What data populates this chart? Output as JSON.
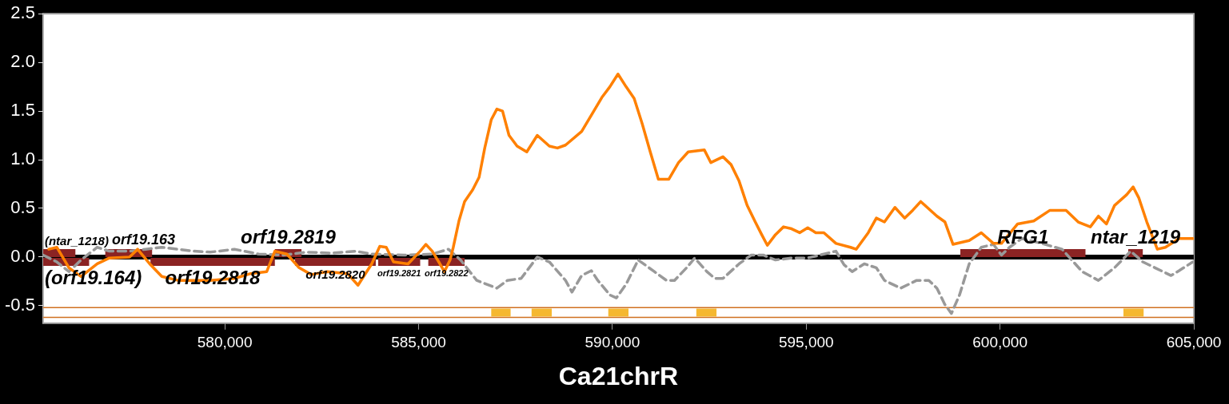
{
  "chart_data": {
    "type": "line",
    "xlabel": "Ca21chrR",
    "xlim": [
      575313,
      605000
    ],
    "ylim": [
      -0.68,
      2.5
    ],
    "xticks": [
      {
        "value": 580000,
        "label": "580,000"
      },
      {
        "value": 585000,
        "label": "585,000"
      },
      {
        "value": 590000,
        "label": "590,000"
      },
      {
        "value": 595000,
        "label": "595,000"
      },
      {
        "value": 600000,
        "label": "600,000"
      },
      {
        "value": 605000,
        "label": "605,000"
      }
    ],
    "yticks": [
      {
        "value": -0.5,
        "label": "-0.5"
      },
      {
        "value": 0,
        "label": "0.0"
      },
      {
        "value": 0.5,
        "label": "0.5"
      },
      {
        "value": 1,
        "label": "1.0"
      },
      {
        "value": 1.5,
        "label": "1.5"
      },
      {
        "value": 2,
        "label": "2.0"
      },
      {
        "value": 2.5,
        "label": "2.5"
      }
    ],
    "grid": false,
    "legend": false,
    "marker": "none",
    "series": [
      {
        "type": "line",
        "color": "#ff8000",
        "line_style": "solid",
        "x": [
          575459,
          575667,
          575980,
          576292,
          576709,
          577021,
          577542,
          577750,
          578063,
          578375,
          578792,
          579625,
          580250,
          580667,
          581083,
          581292,
          581604,
          581917,
          582229,
          582646,
          583167,
          583437,
          583791,
          583999,
          584166,
          584353,
          584728,
          585041,
          585187,
          585353,
          585520,
          585666,
          585812,
          585895,
          586041,
          586187,
          586395,
          586561,
          586707,
          586874,
          587020,
          587166,
          587333,
          587541,
          587791,
          588062,
          588374,
          588582,
          588790,
          589207,
          589520,
          589728,
          589936,
          590144,
          590353,
          590561,
          590769,
          590977,
          591186,
          591457,
          591706,
          591956,
          592373,
          592540,
          592852,
          593061,
          593269,
          593477,
          593686,
          593852,
          593998,
          594207,
          594415,
          594623,
          594831,
          595039,
          595248,
          595456,
          595768,
          596143,
          596289,
          596601,
          596810,
          597018,
          597289,
          597539,
          597747,
          597955,
          598372,
          598580,
          598788,
          599205,
          599517,
          599830,
          600038,
          600455,
          600871,
          601288,
          601705,
          602017,
          602330,
          602538,
          602746,
          602955,
          603267,
          603434,
          603579,
          603788,
          604059,
          604267,
          604621,
          604975
        ],
        "values": [
          0.08,
          0.1,
          -0.11,
          -0.2,
          -0.07,
          -0.01,
          0.0,
          0.08,
          -0.07,
          -0.2,
          -0.24,
          -0.24,
          -0.22,
          -0.17,
          -0.15,
          0.06,
          0.03,
          -0.11,
          -0.18,
          -0.15,
          -0.17,
          -0.29,
          -0.07,
          0.11,
          0.1,
          -0.05,
          -0.07,
          0.06,
          0.13,
          0.06,
          -0.05,
          -0.15,
          -0.03,
          0.1,
          0.37,
          0.57,
          0.69,
          0.82,
          1.12,
          1.41,
          1.52,
          1.5,
          1.25,
          1.14,
          1.08,
          1.25,
          1.14,
          1.12,
          1.15,
          1.29,
          1.5,
          1.64,
          1.75,
          1.88,
          1.75,
          1.63,
          1.37,
          1.08,
          0.8,
          0.8,
          0.97,
          1.08,
          1.1,
          0.97,
          1.03,
          0.95,
          0.78,
          0.53,
          0.36,
          0.23,
          0.12,
          0.23,
          0.31,
          0.29,
          0.25,
          0.3,
          0.25,
          0.25,
          0.14,
          0.1,
          0.08,
          0.25,
          0.4,
          0.36,
          0.51,
          0.4,
          0.48,
          0.57,
          0.42,
          0.36,
          0.13,
          0.17,
          0.25,
          0.14,
          0.14,
          0.34,
          0.37,
          0.48,
          0.48,
          0.36,
          0.31,
          0.42,
          0.34,
          0.53,
          0.64,
          0.72,
          0.61,
          0.36,
          0.08,
          0.1,
          0.19,
          0.19
        ]
      },
      {
        "type": "line",
        "color": "#999999",
        "line_style": "dashed",
        "x": [
          575313,
          575667,
          575980,
          576292,
          576709,
          577021,
          577542,
          577959,
          578375,
          579208,
          579625,
          580250,
          580875,
          581500,
          582125,
          582750,
          583375,
          583791,
          584624,
          585353,
          585770,
          586083,
          586499,
          587020,
          587291,
          587645,
          588062,
          588374,
          588790,
          588957,
          589207,
          589457,
          589623,
          589936,
          590103,
          590353,
          590665,
          591082,
          591394,
          591602,
          591915,
          592123,
          592436,
          592644,
          592852,
          593269,
          593581,
          593894,
          594207,
          594623,
          595039,
          595456,
          595768,
          595977,
          596185,
          596497,
          596810,
          597018,
          597435,
          597851,
          598164,
          598372,
          598580,
          598747,
          598955,
          599205,
          599517,
          599830,
          600038,
          600246,
          600559,
          601080,
          601601,
          602121,
          602538,
          602955,
          603371,
          603684,
          603996,
          604413,
          604621,
          604975
        ],
        "values": [
          0.02,
          -0.05,
          -0.15,
          -0.03,
          0.1,
          0.06,
          0.06,
          0.08,
          0.1,
          0.06,
          0.05,
          0.08,
          0.03,
          0.02,
          0.05,
          0.04,
          0.06,
          0.03,
          0.02,
          0.03,
          0.08,
          -0.03,
          -0.24,
          -0.32,
          -0.24,
          -0.22,
          0.0,
          -0.05,
          -0.24,
          -0.36,
          -0.19,
          -0.14,
          -0.24,
          -0.39,
          -0.42,
          -0.28,
          -0.03,
          -0.15,
          -0.24,
          -0.24,
          -0.11,
          -0.01,
          -0.15,
          -0.22,
          -0.22,
          -0.07,
          0.02,
          0.02,
          -0.03,
          -0.01,
          -0.01,
          0.03,
          0.06,
          -0.08,
          -0.15,
          -0.07,
          -0.11,
          -0.24,
          -0.32,
          -0.24,
          -0.24,
          -0.32,
          -0.49,
          -0.58,
          -0.39,
          -0.07,
          0.1,
          0.13,
          0.02,
          0.1,
          0.19,
          0.14,
          0.08,
          -0.15,
          -0.24,
          -0.11,
          0.06,
          -0.05,
          -0.11,
          -0.19,
          -0.14,
          -0.05
        ]
      },
      {
        "type": "line",
        "color": "#8b2323",
        "line_style": "solid",
        "x": [
          575313,
          576146,
          null,
          576917,
          578125,
          null,
          581292,
          581979,
          null,
          598976,
          602205,
          null,
          603309,
          603684
        ],
        "values": [
          0.04,
          0.04,
          null,
          0.04,
          0.04,
          null,
          0.04,
          0.04,
          null,
          0.04,
          0.04,
          null,
          0.04,
          0.04
        ]
      },
      {
        "type": "line",
        "color": "#8b2323",
        "line_style": "solid",
        "x": [
          575313,
          576500,
          null,
          578083,
          581292,
          null,
          581812,
          583895,
          null,
          583958,
          585041,
          null,
          585250,
          586187
        ],
        "values": [
          -0.05,
          -0.05,
          null,
          -0.05,
          -0.05,
          null,
          -0.05,
          -0.05,
          null,
          -0.05,
          -0.05,
          null,
          -0.05,
          -0.05
        ]
      },
      {
        "type": "line",
        "color": "#f5b830",
        "line_style": "solid",
        "x": [
          586874,
          587374,
          null,
          587915,
          588436,
          null,
          589894,
          590415,
          null,
          592165,
          592686,
          null,
          603184,
          603705
        ],
        "values": [
          -0.57,
          -0.57,
          null,
          -0.57,
          -0.57,
          null,
          -0.57,
          -0.57,
          null,
          -0.57,
          -0.57,
          null,
          -0.57,
          -0.57
        ]
      }
    ],
    "ref_lines": [
      {
        "axis": "y",
        "value": 0,
        "color": "#000000"
      },
      {
        "axis": "y",
        "value": -0.52,
        "color": "#d07020"
      },
      {
        "axis": "y",
        "value": -0.62,
        "color": "#d07020"
      }
    ],
    "annotations": [
      {
        "text": "(ntar_1218)",
        "x": 575313,
        "y": 0.04
      },
      {
        "text": "(orf19.164)",
        "x": 575313,
        "y": -0.05
      },
      {
        "text": "orf19.163",
        "x": 576917,
        "y": 0.04
      },
      {
        "text": "orf19.2818",
        "x": 578083,
        "y": -0.05
      },
      {
        "text": "orf19.2819",
        "x": 581292,
        "y": 0.04
      },
      {
        "text": "orf19.2820",
        "x": 581812,
        "y": -0.05
      },
      {
        "text": "orf19.2821",
        "x": 583958,
        "y": -0.05
      },
      {
        "text": "orf19.2822",
        "x": 585250,
        "y": -0.05
      },
      {
        "text": "RFG1",
        "x": 598976,
        "y": 0.04
      },
      {
        "text": "ntar_1219",
        "x": 603309,
        "y": 0.04
      }
    ]
  }
}
